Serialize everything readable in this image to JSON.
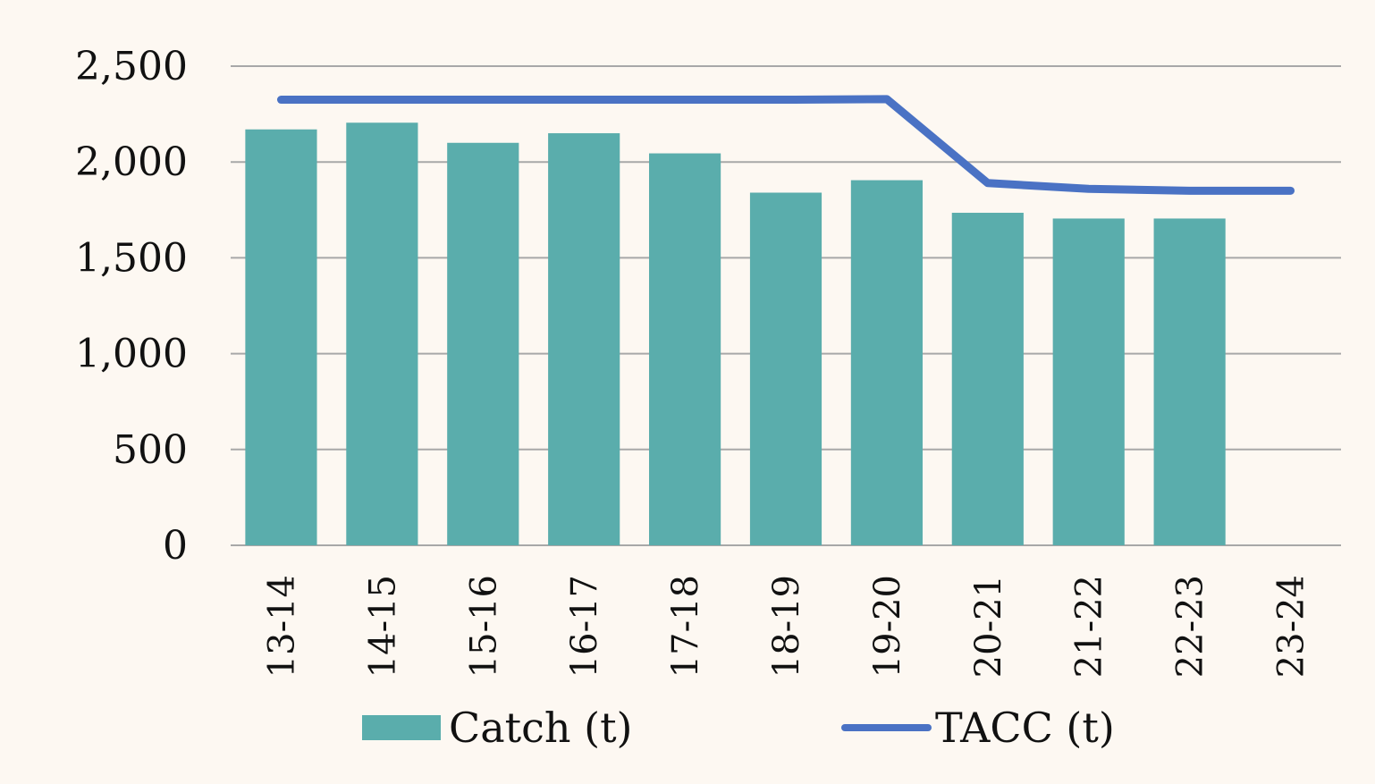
{
  "chart_data": {
    "type": "bar",
    "categories": [
      "13-14",
      "14-15",
      "15-16",
      "16-17",
      "17-18",
      "18-19",
      "19-20",
      "20-21",
      "21-22",
      "22-23",
      "23-24"
    ],
    "series": [
      {
        "name": "Catch (t)",
        "kind": "bar",
        "color": "#5aadac",
        "values": [
          2170,
          2205,
          2100,
          2150,
          2045,
          1840,
          1905,
          1735,
          1705,
          1705,
          null
        ]
      },
      {
        "name": "TACC (t)",
        "kind": "line",
        "color": "#4a72c4",
        "values": [
          2325,
          2325,
          2325,
          2325,
          2325,
          2325,
          2328,
          1890,
          1860,
          1850,
          1850
        ]
      }
    ],
    "yticks": [
      "0",
      "500",
      "1,000",
      "1,500",
      "2,000",
      "2,500"
    ],
    "ylim": [
      0,
      2500
    ],
    "grid": true,
    "legend": "bottom"
  }
}
